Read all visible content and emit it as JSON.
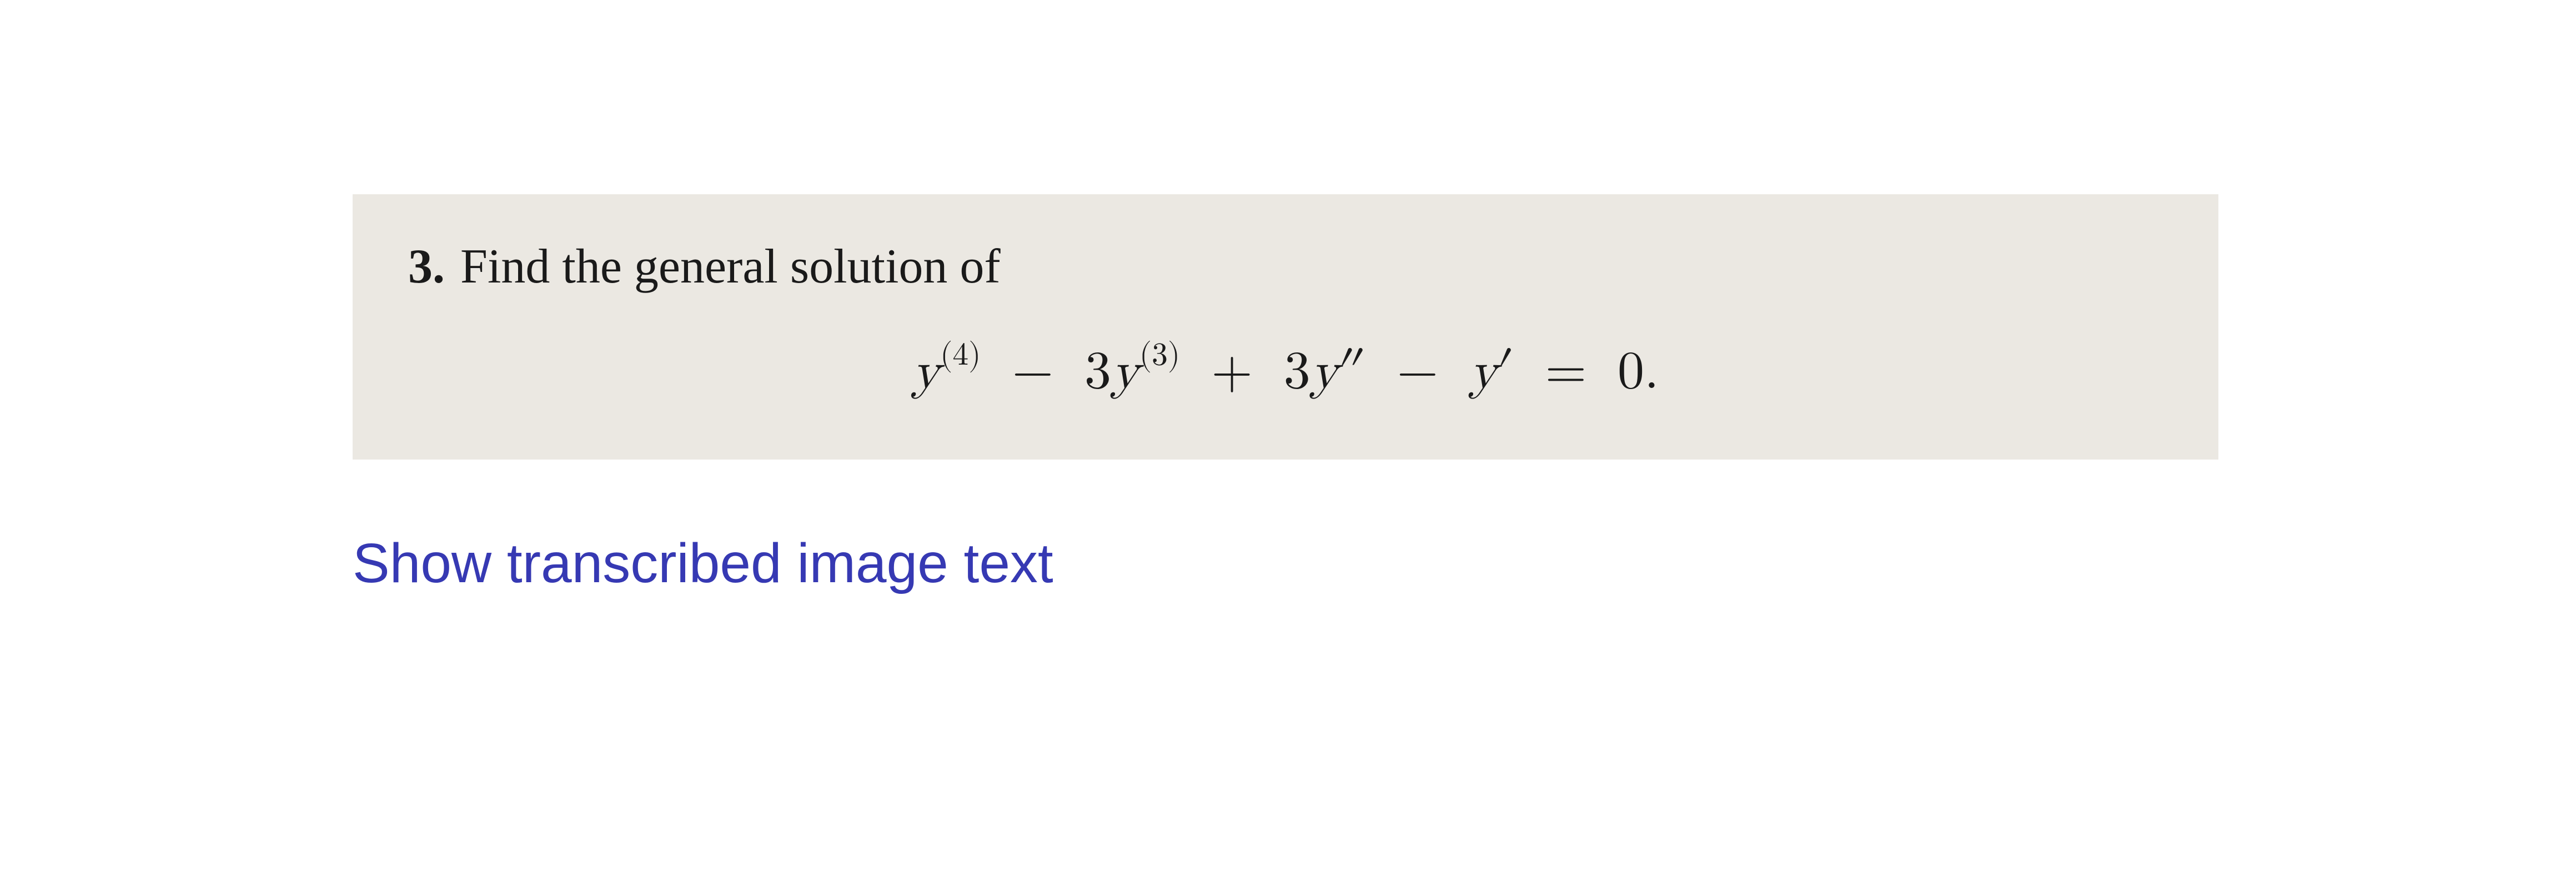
{
  "question": {
    "number": "3.",
    "prompt": "Find the general solution of",
    "equation": {
      "term1": {
        "var": "y",
        "sup": "(4)"
      },
      "op1": "−",
      "term2": {
        "coef": "3",
        "var": "y",
        "sup": "(3)"
      },
      "op2": "+",
      "term3": {
        "coef": "3",
        "var": "y",
        "primes": "″"
      },
      "op3": "−",
      "term4": {
        "var": "y",
        "primes": "′"
      },
      "eq": "=",
      "rhs": "0",
      "punct": "."
    }
  },
  "link": {
    "label": "Show transcribed image text"
  },
  "colors": {
    "page_bg": "#ffffff",
    "box_bg": "#ebe8e2",
    "text": "#1a1a1a",
    "link": "#3639b3"
  }
}
